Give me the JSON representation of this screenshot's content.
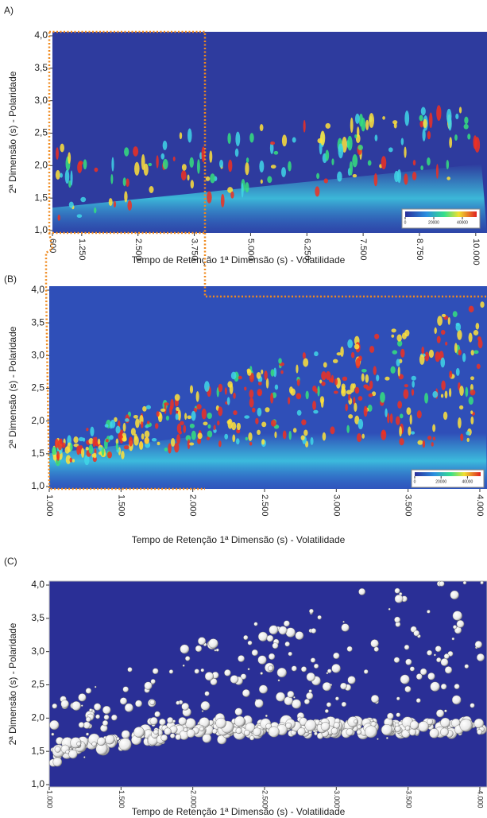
{
  "chart_data": [
    {
      "type": "heatmap",
      "label": "A)",
      "x_label": "Tempo de Retenção  1ª Dimensão (s) - Volatilidade",
      "y_label": "2ª Dimensão (s) - Polaridade",
      "xlim": [
        600,
        10250
      ],
      "xticks": [
        600,
        {
          "value": 1250,
          "label": "1.250"
        },
        {
          "value": 2500,
          "label": "2.500"
        },
        {
          "value": 3750,
          "label": "3.750"
        },
        {
          "value": 5000,
          "label": "5.000"
        },
        {
          "value": 6250,
          "label": "6.250"
        },
        {
          "value": 7500,
          "label": "7.500"
        },
        {
          "value": 8750,
          "label": "8.750"
        },
        {
          "value": 10000,
          "label": "10.000"
        }
      ],
      "ylim": [
        1,
        4
      ],
      "yticks": [
        {
          "value": 4,
          "label": "4,0"
        },
        {
          "value": 3.5,
          "label": "3,5"
        },
        {
          "value": 3,
          "label": "3,0"
        },
        {
          "value": 2.5,
          "label": "2,5"
        },
        {
          "value": 2,
          "label": "2,0"
        },
        {
          "value": 1.5,
          "label": "1,5"
        },
        {
          "value": 1,
          "label": "1,0"
        }
      ],
      "colorbar_lim": [
        0,
        50000
      ],
      "colorbar_ticks": [
        0,
        20000,
        40000
      ]
    },
    {
      "type": "heatmap",
      "label": "(B)",
      "x_label": "Tempo de Retenção 1ª Dimensão (s) - Volatilidade",
      "y_label": "2ª Dimensão (s) - Polaridade",
      "xlim": [
        1000,
        4050
      ],
      "xticks": [
        {
          "value": 1000,
          "label": "1.000"
        },
        {
          "value": 1500,
          "label": "1.500"
        },
        {
          "value": 2000,
          "label": "2.000"
        },
        {
          "value": 2500,
          "label": "2.500"
        },
        {
          "value": 3000,
          "label": "3.000"
        },
        {
          "value": 3500,
          "label": "3.500"
        },
        {
          "value": 4000,
          "label": "4.000"
        }
      ],
      "ylim": [
        1,
        4
      ],
      "yticks": [
        {
          "value": 4,
          "label": "4,0"
        },
        {
          "value": 3.5,
          "label": "3,5"
        },
        {
          "value": 3,
          "label": "3,0"
        },
        {
          "value": 2.5,
          "label": "2,5"
        },
        {
          "value": 2,
          "label": "2,0"
        },
        {
          "value": 1.5,
          "label": "1,5"
        },
        {
          "value": 1,
          "label": "1,0"
        }
      ],
      "colorbar_lim": [
        0,
        50000
      ],
      "colorbar_ticks": [
        0,
        20000,
        40000
      ]
    },
    {
      "type": "bubble",
      "label": "(C)",
      "x_label": "Tempo de Retenção 1ª Dimensão (s) - Volatilidade",
      "y_label": "2ª Dimensão (s) - Polaridade",
      "xlim": [
        1000,
        4050
      ],
      "xticks": [
        {
          "value": 1000,
          "label": "1.000"
        },
        {
          "value": 1500,
          "label": "1.500"
        },
        {
          "value": 2000,
          "label": "2.000"
        },
        {
          "value": 2500,
          "label": "2.500"
        },
        {
          "value": 3000,
          "label": "3.000"
        },
        {
          "value": 3500,
          "label": "3.500"
        },
        {
          "value": 4000,
          "label": "4.000"
        }
      ],
      "ylim": [
        1,
        4
      ],
      "yticks": [
        {
          "value": 4,
          "label": "4,0"
        },
        {
          "value": 3.5,
          "label": "3,5"
        },
        {
          "value": 3,
          "label": "3,0"
        },
        {
          "value": 2.5,
          "label": "2,5"
        },
        {
          "value": 2,
          "label": "2,0"
        },
        {
          "value": 1.5,
          "label": "1,5"
        },
        {
          "value": 1,
          "label": "1,0"
        }
      ]
    }
  ]
}
